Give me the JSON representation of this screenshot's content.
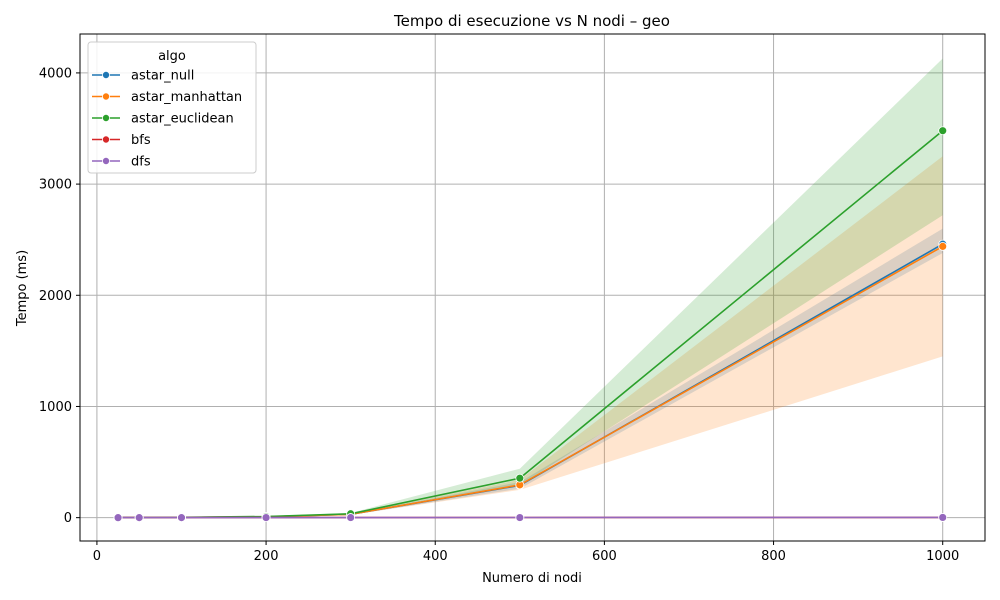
{
  "chart_data": {
    "type": "line",
    "title": "Tempo di esecuzione vs N nodi – geo",
    "xlabel": "Numero di nodi",
    "ylabel": "Tempo (ms)",
    "xlim": [
      -20,
      1050
    ],
    "ylim": [
      -210,
      4350
    ],
    "xticks": [
      0,
      200,
      400,
      600,
      800,
      1000
    ],
    "yticks": [
      0,
      1000,
      2000,
      3000,
      4000
    ],
    "grid": true,
    "legend": {
      "title": "algo",
      "placement": "top-left"
    },
    "x": [
      25,
      50,
      100,
      200,
      300,
      500,
      1000
    ],
    "series": [
      {
        "name": "astar_null",
        "color": "#1f77b4",
        "values": [
          0.2,
          0.6,
          2,
          8,
          30,
          290,
          2460
        ],
        "ci_low": [
          0.1,
          0.4,
          1.5,
          6,
          25,
          260,
          2380
        ],
        "ci_high": [
          0.3,
          0.8,
          2.5,
          10,
          35,
          320,
          2600
        ]
      },
      {
        "name": "astar_manhattan",
        "color": "#ff7f0e",
        "values": [
          0.2,
          0.6,
          2,
          8,
          30,
          295,
          2440
        ],
        "ci_low": [
          0.1,
          0.4,
          1.5,
          6,
          25,
          250,
          1450
        ],
        "ci_high": [
          0.3,
          0.8,
          2.5,
          10,
          35,
          340,
          3250
        ]
      },
      {
        "name": "astar_euclidean",
        "color": "#2ca02c",
        "values": [
          0.3,
          0.8,
          3,
          10,
          35,
          355,
          3480
        ],
        "ci_low": [
          0.2,
          0.5,
          2,
          8,
          28,
          290,
          2720
        ],
        "ci_high": [
          0.4,
          1.1,
          4,
          12,
          42,
          440,
          4130
        ]
      },
      {
        "name": "bfs",
        "color": "#d62728",
        "values": [
          0.05,
          0.1,
          0.2,
          0.4,
          0.6,
          1,
          2
        ],
        "ci_low": [
          0.04,
          0.08,
          0.15,
          0.3,
          0.5,
          0.8,
          1.6
        ],
        "ci_high": [
          0.06,
          0.12,
          0.25,
          0.5,
          0.7,
          1.2,
          2.4
        ]
      },
      {
        "name": "dfs",
        "color": "#9467bd",
        "values": [
          0.05,
          0.1,
          0.2,
          0.4,
          0.6,
          1,
          2
        ],
        "ci_low": [
          0.04,
          0.08,
          0.15,
          0.3,
          0.5,
          0.8,
          1.6
        ],
        "ci_high": [
          0.06,
          0.12,
          0.25,
          0.5,
          0.7,
          1.2,
          2.4
        ]
      }
    ]
  }
}
